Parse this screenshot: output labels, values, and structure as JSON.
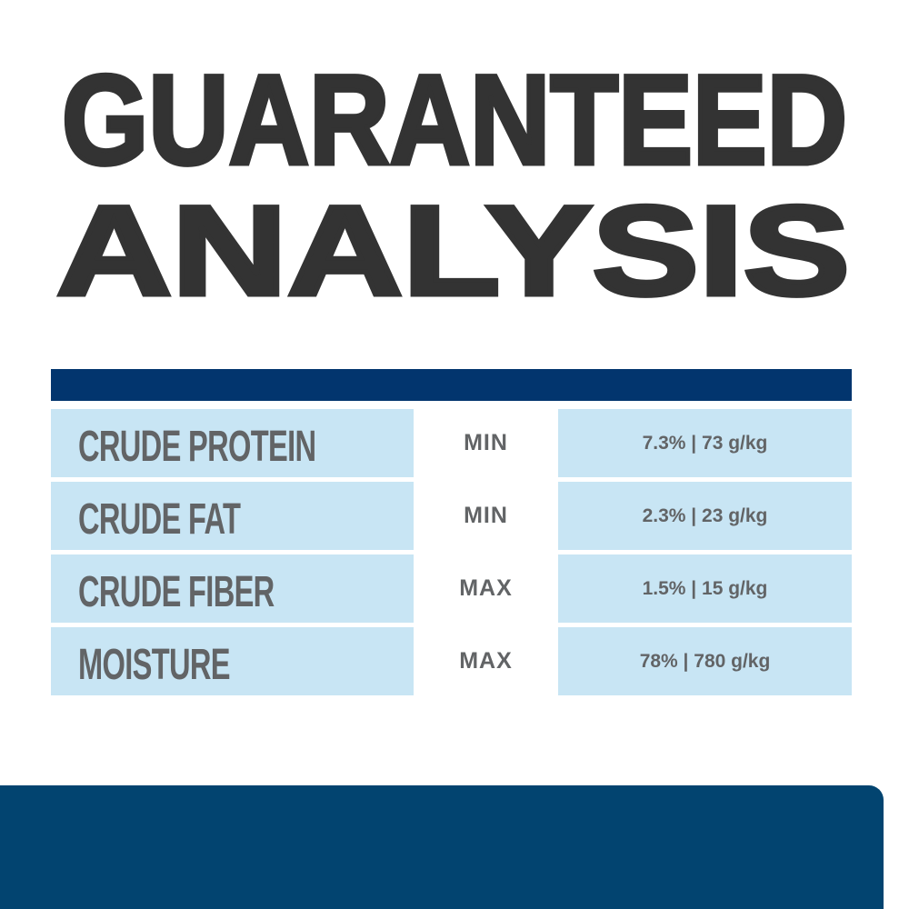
{
  "title": {
    "line1": "GUARANTEED",
    "line2": "ANALYSIS"
  },
  "colors": {
    "header_bar": "#02356e",
    "cell_background": "#c8e5f4",
    "text_gray": "#626466",
    "title_dark": "#333333",
    "footer": "#024470"
  },
  "rows": [
    {
      "nutrient": "CRUDE PROTEIN",
      "qualifier": "MIN",
      "value": "7.3% | 73 g/kg"
    },
    {
      "nutrient": "CRUDE FAT",
      "qualifier": "MIN",
      "value": "2.3% | 23 g/kg"
    },
    {
      "nutrient": "CRUDE FIBER",
      "qualifier": "MAX",
      "value": "1.5% | 15 g/kg"
    },
    {
      "nutrient": "MOISTURE",
      "qualifier": "MAX",
      "value": "78% | 780 g/kg"
    }
  ]
}
